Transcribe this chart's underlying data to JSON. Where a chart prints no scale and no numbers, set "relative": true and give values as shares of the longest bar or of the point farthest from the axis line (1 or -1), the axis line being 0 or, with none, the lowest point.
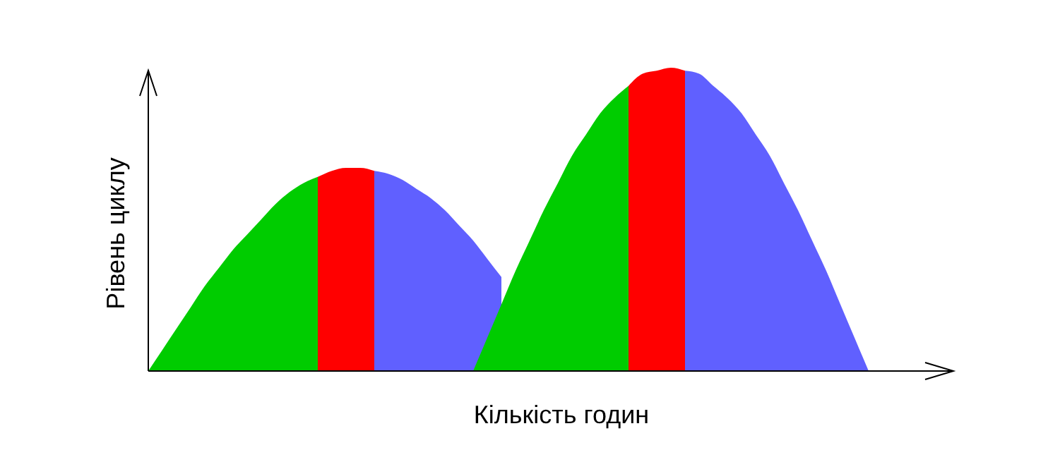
{
  "chart_data": {
    "type": "area",
    "xlabel": "Кількість годин",
    "ylabel": "Рівень циклу",
    "relative": true,
    "categories": [
      null,
      null,
      null,
      null,
      null,
      null,
      null,
      null,
      null,
      null,
      null,
      null,
      null,
      null,
      null,
      null,
      null,
      null,
      null,
      null,
      null,
      null,
      null,
      null,
      null,
      null,
      null,
      null,
      null,
      null,
      null,
      null,
      null,
      null,
      null,
      null,
      null,
      null,
      null,
      null,
      null,
      null,
      null,
      null,
      null,
      null,
      null,
      null,
      null,
      null,
      null,
      null,
      null,
      null,
      null,
      null,
      null,
      null
    ],
    "series": [
      {
        "color": "#00cc00",
        "values": [
          0,
          0.07,
          0.14,
          0.21,
          0.28,
          0.34,
          0.4,
          0.45,
          0.5,
          0.55,
          0.59,
          0.62,
          0.64,
          null,
          null,
          null,
          null,
          null,
          null,
          null,
          null,
          null,
          null,
          null,
          null,
          null,
          null,
          null,
          null,
          null,
          null,
          null,
          null,
          null,
          null,
          null,
          null,
          null,
          null,
          null,
          null,
          null,
          null,
          null,
          null,
          null,
          null,
          null,
          null,
          null,
          null,
          null,
          null,
          null,
          null,
          null,
          null,
          null
        ]
      },
      {
        "color": "#ff0000",
        "values": [
          null,
          null,
          null,
          null,
          null,
          null,
          null,
          null,
          null,
          null,
          null,
          null,
          0.64,
          0.66,
          0.67,
          0.67,
          0.66,
          null,
          null,
          null,
          null,
          null,
          null,
          null,
          null,
          null,
          null,
          null,
          null,
          null,
          null,
          null,
          null,
          null,
          null,
          null,
          null,
          null,
          null,
          null,
          null,
          null,
          null,
          null,
          null,
          null,
          null,
          null,
          null,
          null,
          null,
          null,
          null,
          null,
          null,
          null,
          null,
          null
        ]
      },
      {
        "color": "#6060ff",
        "values": [
          null,
          null,
          null,
          null,
          null,
          null,
          null,
          null,
          null,
          null,
          null,
          null,
          null,
          null,
          null,
          null,
          0.66,
          0.65,
          0.63,
          0.6,
          0.57,
          0.53,
          0.48,
          0.43,
          0.37,
          0.31,
          null,
          null,
          null,
          null,
          null,
          null,
          null,
          null,
          null,
          null,
          null,
          null,
          null,
          null,
          null,
          null,
          null,
          null,
          null,
          null,
          null,
          null,
          null,
          null,
          null,
          null,
          null,
          null,
          null,
          null,
          null,
          null
        ]
      },
      {
        "color": "#00cc00",
        "values": [
          null,
          null,
          null,
          null,
          null,
          null,
          null,
          null,
          null,
          null,
          null,
          null,
          null,
          null,
          null,
          null,
          null,
          null,
          null,
          null,
          null,
          null,
          null,
          0,
          0.11,
          0.22,
          0.33,
          0.43,
          0.53,
          0.62,
          0.71,
          0.78,
          0.85,
          0.9,
          0.94,
          null,
          null,
          null,
          null,
          null,
          null,
          null,
          null,
          null,
          null,
          null,
          null,
          null,
          null,
          null,
          null,
          null,
          null,
          null,
          null,
          null,
          null,
          null
        ]
      },
      {
        "color": "#ff0000",
        "values": [
          null,
          null,
          null,
          null,
          null,
          null,
          null,
          null,
          null,
          null,
          null,
          null,
          null,
          null,
          null,
          null,
          null,
          null,
          null,
          null,
          null,
          null,
          null,
          null,
          null,
          null,
          null,
          null,
          null,
          null,
          null,
          null,
          null,
          null,
          0.94,
          0.98,
          0.99,
          1,
          0.99,
          null,
          null,
          null,
          null,
          null,
          null,
          null,
          null,
          null,
          null,
          null,
          null,
          null,
          null,
          null,
          null,
          null,
          null,
          null
        ]
      },
      {
        "color": "#6060ff",
        "values": [
          null,
          null,
          null,
          null,
          null,
          null,
          null,
          null,
          null,
          null,
          null,
          null,
          null,
          null,
          null,
          null,
          null,
          null,
          null,
          null,
          null,
          null,
          null,
          null,
          null,
          null,
          null,
          null,
          null,
          null,
          null,
          null,
          null,
          null,
          null,
          null,
          null,
          null,
          0.99,
          0.98,
          0.94,
          0.9,
          0.85,
          0.78,
          0.71,
          0.62,
          0.53,
          0.43,
          0.33,
          0.22,
          0.11,
          0,
          null,
          null,
          null,
          null,
          null,
          null
        ]
      }
    ]
  }
}
